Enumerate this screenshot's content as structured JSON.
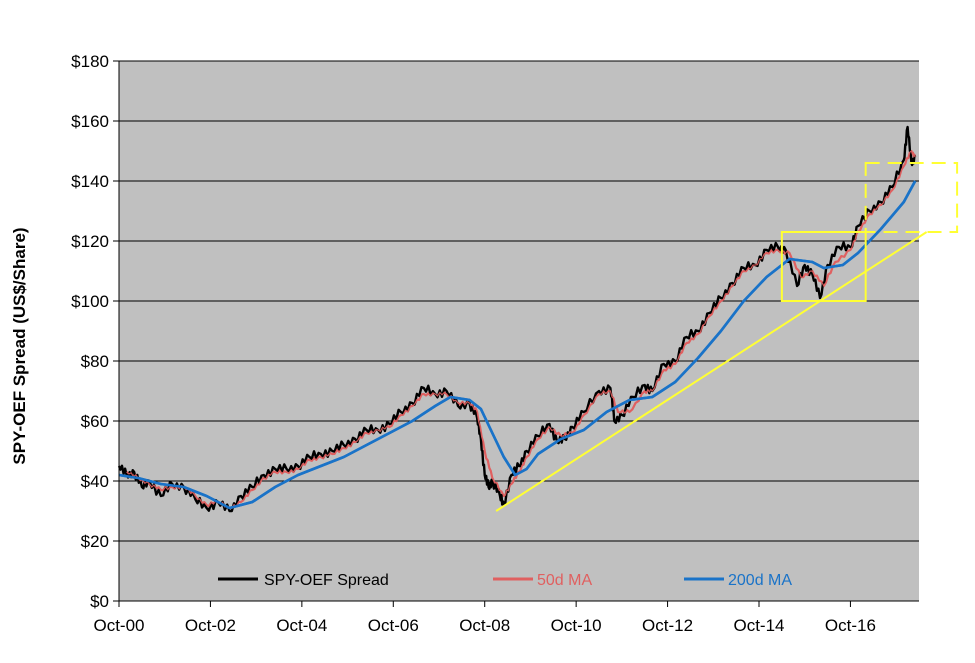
{
  "chart_data": {
    "type": "line",
    "title": "",
    "xlabel": "",
    "ylabel": "SPY-OEF Spread (US$/Share)",
    "ylim": [
      0,
      180
    ],
    "xlim": [
      "2000-10",
      "2018-04"
    ],
    "yticks": [
      {
        "value": 0,
        "label": "$0"
      },
      {
        "value": 20,
        "label": "$20"
      },
      {
        "value": 40,
        "label": "$40"
      },
      {
        "value": 60,
        "label": "$60"
      },
      {
        "value": 80,
        "label": "$80"
      },
      {
        "value": 100,
        "label": "$100"
      },
      {
        "value": 120,
        "label": "$120"
      },
      {
        "value": 140,
        "label": "$140"
      },
      {
        "value": 160,
        "label": "$160"
      },
      {
        "value": 180,
        "label": "$180"
      }
    ],
    "xticks": [
      {
        "date": "2000-10",
        "label": "Oct-00"
      },
      {
        "date": "2002-10",
        "label": "Oct-02"
      },
      {
        "date": "2004-10",
        "label": "Oct-04"
      },
      {
        "date": "2006-10",
        "label": "Oct-06"
      },
      {
        "date": "2008-10",
        "label": "Oct-08"
      },
      {
        "date": "2010-10",
        "label": "Oct-10"
      },
      {
        "date": "2012-10",
        "label": "Oct-12"
      },
      {
        "date": "2014-10",
        "label": "Oct-14"
      },
      {
        "date": "2016-10",
        "label": "Oct-16"
      }
    ],
    "grid": true,
    "legend_position": "bottom",
    "plot_background": "#c0c0c0",
    "series": [
      {
        "name": "SPY-OEF Spread",
        "color": "#000000",
        "points": [
          [
            "2000-10",
            45
          ],
          [
            "2000-12",
            42
          ],
          [
            "2001-02",
            43
          ],
          [
            "2001-04",
            38
          ],
          [
            "2001-06",
            40
          ],
          [
            "2001-09",
            35
          ],
          [
            "2001-12",
            39
          ],
          [
            "2002-03",
            38
          ],
          [
            "2002-06",
            34
          ],
          [
            "2002-09",
            31
          ],
          [
            "2002-12",
            33
          ],
          [
            "2003-03",
            30
          ],
          [
            "2003-06",
            35
          ],
          [
            "2003-09",
            38
          ],
          [
            "2003-12",
            42
          ],
          [
            "2004-03",
            44
          ],
          [
            "2004-06",
            44
          ],
          [
            "2004-09",
            45
          ],
          [
            "2004-12",
            48
          ],
          [
            "2005-03",
            49
          ],
          [
            "2005-06",
            50
          ],
          [
            "2005-09",
            52
          ],
          [
            "2005-12",
            54
          ],
          [
            "2006-03",
            57
          ],
          [
            "2006-06",
            57
          ],
          [
            "2006-09",
            59
          ],
          [
            "2006-12",
            63
          ],
          [
            "2007-03",
            66
          ],
          [
            "2007-06",
            71
          ],
          [
            "2007-09",
            69
          ],
          [
            "2007-12",
            70
          ],
          [
            "2008-03",
            65
          ],
          [
            "2008-06",
            66
          ],
          [
            "2008-08",
            61
          ],
          [
            "2008-09",
            54
          ],
          [
            "2008-10",
            42
          ],
          [
            "2008-11",
            38
          ],
          [
            "2008-12",
            40
          ],
          [
            "2009-02",
            35
          ],
          [
            "2009-03",
            32
          ],
          [
            "2009-05",
            42
          ],
          [
            "2009-07",
            45
          ],
          [
            "2009-09",
            50
          ],
          [
            "2009-12",
            55
          ],
          [
            "2010-03",
            59
          ],
          [
            "2010-05",
            53
          ],
          [
            "2010-07",
            54
          ],
          [
            "2010-09",
            58
          ],
          [
            "2010-12",
            63
          ],
          [
            "2011-04",
            70
          ],
          [
            "2011-07",
            71
          ],
          [
            "2011-08",
            60
          ],
          [
            "2011-10",
            62
          ],
          [
            "2012-01",
            68
          ],
          [
            "2012-04",
            72
          ],
          [
            "2012-06",
            70
          ],
          [
            "2012-09",
            79
          ],
          [
            "2012-12",
            80
          ],
          [
            "2013-03",
            88
          ],
          [
            "2013-06",
            90
          ],
          [
            "2013-09",
            96
          ],
          [
            "2013-12",
            101
          ],
          [
            "2014-03",
            106
          ],
          [
            "2014-06",
            111
          ],
          [
            "2014-09",
            112
          ],
          [
            "2014-12",
            117
          ],
          [
            "2015-03",
            118
          ],
          [
            "2015-05",
            117
          ],
          [
            "2015-08",
            105
          ],
          [
            "2015-10",
            112
          ],
          [
            "2015-12",
            109
          ],
          [
            "2016-02",
            101
          ],
          [
            "2016-04",
            112
          ],
          [
            "2016-07",
            118
          ],
          [
            "2016-10",
            118
          ],
          [
            "2016-12",
            125
          ],
          [
            "2017-03",
            130
          ],
          [
            "2017-06",
            133
          ],
          [
            "2017-09",
            138
          ],
          [
            "2017-12",
            147
          ],
          [
            "2018-01",
            158
          ],
          [
            "2018-02",
            146
          ],
          [
            "2018-03",
            148
          ]
        ]
      },
      {
        "name": "50d MA",
        "color": "#e06060",
        "points": [
          [
            "2000-12",
            43
          ],
          [
            "2001-03",
            41
          ],
          [
            "2001-06",
            39
          ],
          [
            "2001-09",
            37
          ],
          [
            "2001-12",
            38
          ],
          [
            "2002-03",
            38
          ],
          [
            "2002-06",
            35
          ],
          [
            "2002-09",
            32
          ],
          [
            "2002-12",
            33
          ],
          [
            "2003-03",
            31
          ],
          [
            "2003-06",
            33
          ],
          [
            "2003-09",
            37
          ],
          [
            "2003-12",
            41
          ],
          [
            "2004-03",
            43
          ],
          [
            "2004-06",
            43
          ],
          [
            "2004-09",
            44
          ],
          [
            "2004-12",
            47
          ],
          [
            "2005-03",
            48
          ],
          [
            "2005-06",
            49
          ],
          [
            "2005-09",
            51
          ],
          [
            "2005-12",
            53
          ],
          [
            "2006-03",
            56
          ],
          [
            "2006-06",
            57
          ],
          [
            "2006-09",
            58
          ],
          [
            "2006-12",
            62
          ],
          [
            "2007-03",
            65
          ],
          [
            "2007-06",
            69
          ],
          [
            "2007-09",
            69
          ],
          [
            "2007-12",
            69
          ],
          [
            "2008-03",
            66
          ],
          [
            "2008-06",
            66
          ],
          [
            "2008-08",
            63
          ],
          [
            "2008-10",
            50
          ],
          [
            "2008-12",
            41
          ],
          [
            "2009-03",
            35
          ],
          [
            "2009-05",
            39
          ],
          [
            "2009-07",
            43
          ],
          [
            "2009-09",
            48
          ],
          [
            "2009-12",
            54
          ],
          [
            "2010-03",
            58
          ],
          [
            "2010-06",
            55
          ],
          [
            "2010-09",
            56
          ],
          [
            "2010-12",
            62
          ],
          [
            "2011-04",
            69
          ],
          [
            "2011-07",
            70
          ],
          [
            "2011-09",
            63
          ],
          [
            "2011-12",
            63
          ],
          [
            "2012-04",
            70
          ],
          [
            "2012-06",
            70
          ],
          [
            "2012-09",
            77
          ],
          [
            "2012-12",
            79
          ],
          [
            "2013-03",
            86
          ],
          [
            "2013-06",
            89
          ],
          [
            "2013-09",
            95
          ],
          [
            "2013-12",
            100
          ],
          [
            "2014-03",
            105
          ],
          [
            "2014-06",
            110
          ],
          [
            "2014-09",
            112
          ],
          [
            "2014-12",
            116
          ],
          [
            "2015-03",
            117
          ],
          [
            "2015-06",
            116
          ],
          [
            "2015-09",
            108
          ],
          [
            "2015-12",
            110
          ],
          [
            "2016-03",
            105
          ],
          [
            "2016-06",
            113
          ],
          [
            "2016-10",
            117
          ],
          [
            "2016-12",
            123
          ],
          [
            "2017-03",
            129
          ],
          [
            "2017-06",
            132
          ],
          [
            "2017-09",
            137
          ],
          [
            "2017-12",
            145
          ],
          [
            "2018-02",
            150
          ],
          [
            "2018-03",
            148
          ]
        ]
      },
      {
        "name": "200d MA",
        "color": "#1a73c8",
        "points": [
          [
            "2000-10",
            42
          ],
          [
            "2001-03",
            41
          ],
          [
            "2001-09",
            39
          ],
          [
            "2002-03",
            38
          ],
          [
            "2002-09",
            35
          ],
          [
            "2003-03",
            31
          ],
          [
            "2003-09",
            33
          ],
          [
            "2004-03",
            38
          ],
          [
            "2004-09",
            42
          ],
          [
            "2005-03",
            45
          ],
          [
            "2005-09",
            48
          ],
          [
            "2006-03",
            52
          ],
          [
            "2006-09",
            56
          ],
          [
            "2007-03",
            60
          ],
          [
            "2007-09",
            65
          ],
          [
            "2008-01",
            68
          ],
          [
            "2008-06",
            67
          ],
          [
            "2008-09",
            64
          ],
          [
            "2008-12",
            56
          ],
          [
            "2009-03",
            48
          ],
          [
            "2009-06",
            42
          ],
          [
            "2009-09",
            44
          ],
          [
            "2009-12",
            49
          ],
          [
            "2010-06",
            54
          ],
          [
            "2010-12",
            57
          ],
          [
            "2011-06",
            63
          ],
          [
            "2011-12",
            67
          ],
          [
            "2012-06",
            68
          ],
          [
            "2012-12",
            73
          ],
          [
            "2013-06",
            81
          ],
          [
            "2013-12",
            90
          ],
          [
            "2014-06",
            100
          ],
          [
            "2014-12",
            108
          ],
          [
            "2015-06",
            114
          ],
          [
            "2015-12",
            113
          ],
          [
            "2016-03",
            111
          ],
          [
            "2016-08",
            112
          ],
          [
            "2016-12",
            116
          ],
          [
            "2017-06",
            124
          ],
          [
            "2017-12",
            133
          ],
          [
            "2018-03",
            140
          ]
        ]
      }
    ],
    "annotations": [
      {
        "type": "line",
        "color": "#ffff33",
        "from": [
          "2009-01",
          30
        ],
        "to": [
          "2018-06",
          123
        ]
      },
      {
        "type": "box",
        "color": "#ffff33",
        "x": [
          "2015-04",
          "2017-02"
        ],
        "y": [
          100,
          123
        ]
      },
      {
        "type": "box",
        "color": "#ffff33",
        "style": "dashed",
        "x": [
          "2017-02",
          "2019-02"
        ],
        "y": [
          123,
          146
        ]
      }
    ]
  }
}
